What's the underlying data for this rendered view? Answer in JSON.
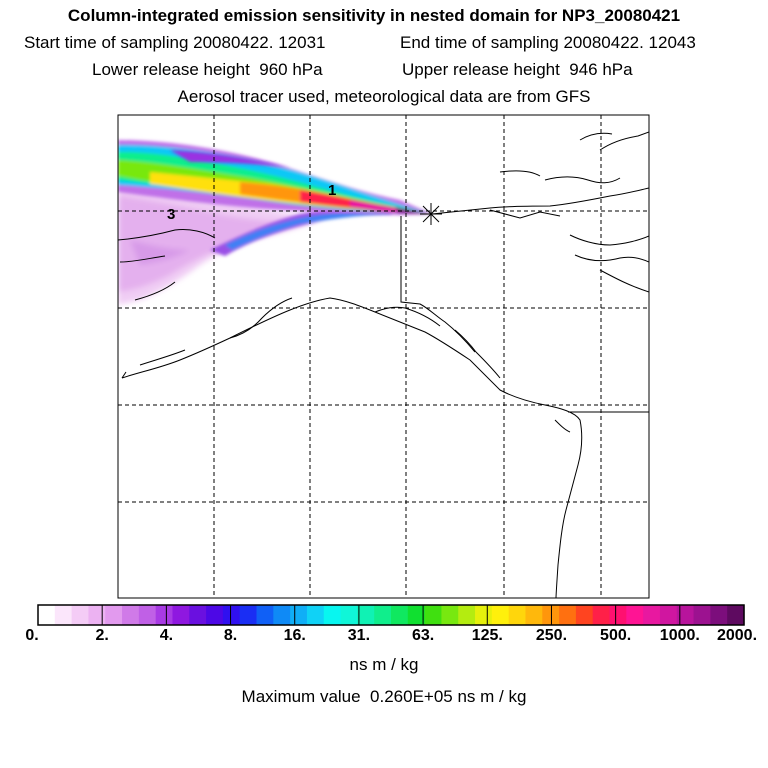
{
  "header": {
    "title": "Column-integrated emission sensitivity in nested domain for NP3_20080421",
    "start_time": "Start time of sampling 20080422. 12031",
    "end_time": "End time of sampling 20080422. 12043",
    "lower_height": "Lower release height  960 hPa",
    "upper_height": "Upper release height  946 hPa",
    "tracer_note": "Aerosol tracer used, meteorological data are from GFS"
  },
  "map": {
    "plume_labels": [
      "1",
      "3"
    ],
    "release_marker": "release-point-star"
  },
  "colorbar": {
    "colors": [
      "#ffffff",
      "#fbe6fb",
      "#f4ccf6",
      "#ecb2f2",
      "#e29aee",
      "#d07ae8",
      "#c060e6",
      "#a83ae4",
      "#8f18e0",
      "#6a10e0",
      "#4d08e6",
      "#3010f0",
      "#1a2ef4",
      "#1060f6",
      "#0f8af6",
      "#10aef6",
      "#10d2f6",
      "#08f6f0",
      "#10f6d8",
      "#10f2b4",
      "#10ee8c",
      "#10e860",
      "#10e030",
      "#40e010",
      "#78e810",
      "#b4ec10",
      "#e6f00c",
      "#fff00c",
      "#ffd60c",
      "#ffb80c",
      "#ff960c",
      "#ff7010",
      "#ff4420",
      "#ff2048",
      "#ff1070",
      "#ff1494",
      "#e818a0",
      "#d016a0",
      "#b8149c",
      "#9c1290",
      "#7c0e7c",
      "#5e0a60"
    ],
    "tick_labels": [
      "0.",
      "2.",
      "4.",
      "8.",
      "16.",
      "31.",
      "63.",
      "125.",
      "250.",
      "500.",
      "1000.",
      "2000."
    ],
    "units": "ns m / kg",
    "max_value_text": "Maximum value  0.260E+05 ns m / kg"
  }
}
